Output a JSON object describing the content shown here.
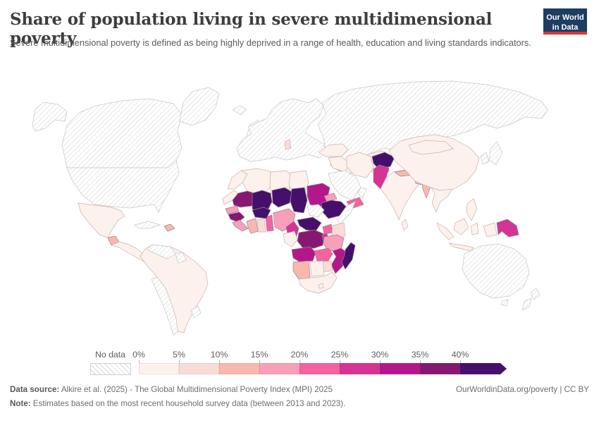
{
  "header": {
    "title": "Share of population living in severe multidimensional poverty",
    "subtitle": "Severe multidimensional poverty is defined as being highly deprived in a range of health, education and living standards indicators.",
    "logo_line1": "Our World",
    "logo_line2": "in Data",
    "logo_bg": "#1d3d63",
    "logo_accent": "#d73a33"
  },
  "legend": {
    "no_data_label": "No data",
    "tick_labels": [
      "0%",
      "5%",
      "10%",
      "15%",
      "20%",
      "25%",
      "30%",
      "35%",
      "40%"
    ],
    "colors": [
      "#fcf1ed",
      "#fadcd7",
      "#f9b8ae",
      "#f8a0b9",
      "#f2639f",
      "#d43493",
      "#b2188a",
      "#861872",
      "#45106b"
    ],
    "hatch_line_color": "#d8d8d8"
  },
  "footer": {
    "data_source_label": "Data source:",
    "data_source_text": " Alkire et al. (2025) - The Global Multidimensional Poverty Index (MPI) 2025",
    "note_label": "Note:",
    "note_text": " Estimates based on the most recent household survey data (between 2013 and 2023).",
    "link_text": "OurWorldinData.org/poverty | CC BY"
  },
  "chart_data": {
    "type": "choropleth_map",
    "title": "Share of population living in severe multidimensional poverty",
    "unit": "% of population",
    "bucket_ranges": [
      "0-5%",
      "5-10%",
      "10-15%",
      "15-20%",
      "20-25%",
      "25-30%",
      "30-35%",
      "35-40%",
      ">40%"
    ],
    "no_data_value": "no_data",
    "regions": {
      "alaska": "no_data",
      "canada": "no_data",
      "usa": "no_data",
      "greenland": "no_data",
      "cuba": "no_data",
      "venezuela": "no_data",
      "guyana": "no_data",
      "chile": "no_data",
      "uruguay": "no_data",
      "iceland": "no_data",
      "united_kingdom": "no_data",
      "europe": "no_data",
      "russia": "no_data",
      "saudi_arabia": "no_data",
      "oman": "no_data",
      "korea": "no_data",
      "japan": "no_data",
      "somalia": "no_data",
      "south_sudan": "no_data",
      "australia": "no_data",
      "tasmania": "no_data",
      "new_zealand_north": "no_data",
      "new_zealand_south": "no_data",
      "mexico": 0,
      "central_america": 0,
      "south_america": 0,
      "morocco": 0,
      "algeria": 0,
      "libya": 0,
      "egypt": 0,
      "western_sahara": 0,
      "gabon_congo": 0,
      "botswana": 0,
      "south_africa": 0,
      "lesotho": 0,
      "turkey": 0,
      "syria_iraq": 0,
      "iran": 0,
      "kazakhstan_central_asia": 0,
      "china": 0,
      "mongolia": 0,
      "india": 0,
      "sri_lanka": 0,
      "se_asia": 0,
      "philippines": 0,
      "sumatra": 0,
      "borneo": 0,
      "java": 0,
      "sulawesi": 0,
      "west_papua": 0,
      "ghana": 1,
      "kenya": 1,
      "zimbabwe": 1,
      "balkans": 1,
      "guatemala": 2,
      "haiti": 2,
      "cote_divoire": 2,
      "namibia": 2,
      "nepal": 2,
      "bangladesh": 2,
      "myanmar": 2,
      "senegal": 3,
      "sierra_leone_liberia": 3,
      "eritrea": 3,
      "tanzania": 3,
      "nigeria": 3,
      "tajikistan": 3,
      "togo_benin": 4,
      "uganda": 4,
      "zambia": 4,
      "yemen": 4,
      "cameroon": 5,
      "rwanda_burundi": 5,
      "papua_new_guinea": 5,
      "pakistan": 5,
      "sudan": 6,
      "angola": 6,
      "mozambique": 6,
      "mauritania": 7,
      "guinea": 7,
      "drc": 7,
      "mali": 8,
      "niger": 8,
      "chad": 8,
      "burkina_faso": 8,
      "ethiopia": 8,
      "central_african_republic": 8,
      "madagascar": 8,
      "afghanistan": 8
    }
  }
}
